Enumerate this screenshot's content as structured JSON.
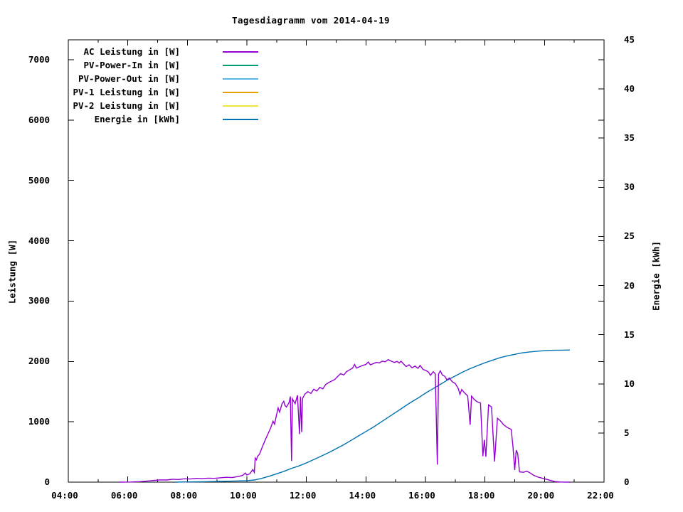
{
  "title": "Tagesdiagramm vom 2014-04-19",
  "axes": {
    "left_label": "Leistung [W]",
    "right_label": "Energie [kWh]",
    "x_tick_labels": [
      "04:00",
      "06:00",
      "08:00",
      "10:00",
      "12:00",
      "14:00",
      "16:00",
      "18:00",
      "20:00",
      "22:00"
    ],
    "left_tick_values": [
      0,
      1000,
      2000,
      3000,
      4000,
      5000,
      6000,
      7000
    ],
    "right_tick_values": [
      0,
      5,
      10,
      15,
      20,
      25,
      30,
      35,
      40,
      45
    ]
  },
  "legend": [
    {
      "label": "AC Leistung in [W]",
      "color": "#9400d3"
    },
    {
      "label": "PV-Power-In in [W]",
      "color": "#009e73"
    },
    {
      "label": "PV-Power-Out in [W]",
      "color": "#56b4e9"
    },
    {
      "label": "PV-1 Leistung in [W]",
      "color": "#e69f00"
    },
    {
      "label": "PV-2 Leistung in [W]",
      "color": "#f0e442"
    },
    {
      "label": "Energie in [kWh]",
      "color": "#0072b2"
    }
  ],
  "chart_data": {
    "type": "line",
    "title": "Tagesdiagramm vom 2014-04-19",
    "x_axis": {
      "unit": "hour-of-day",
      "range": [
        4,
        22
      ],
      "major_tick_step_h": 2,
      "minor_tick_step_h": 1,
      "tick_labels": [
        "04:00",
        "06:00",
        "08:00",
        "10:00",
        "12:00",
        "14:00",
        "16:00",
        "18:00",
        "20:00",
        "22:00"
      ]
    },
    "y_left_axis": {
      "label": "Leistung [W]",
      "range": [
        0,
        7330
      ],
      "tick_step": 1000
    },
    "y_right_axis": {
      "label": "Energie [kWh]",
      "range": [
        0,
        45
      ],
      "tick_step": 5
    },
    "grid": false,
    "legend_position": "top-left-inside",
    "series": [
      {
        "name": "AC Leistung in [W]",
        "color": "#9400d3",
        "axis": "left",
        "unit": "W",
        "points": [
          [
            5.7,
            0
          ],
          [
            6.1,
            2
          ],
          [
            6.4,
            8
          ],
          [
            6.7,
            20
          ],
          [
            6.9,
            30
          ],
          [
            7.1,
            38
          ],
          [
            7.3,
            35
          ],
          [
            7.5,
            48
          ],
          [
            7.7,
            44
          ],
          [
            7.9,
            55
          ],
          [
            8.1,
            52
          ],
          [
            8.3,
            62
          ],
          [
            8.5,
            58
          ],
          [
            8.7,
            66
          ],
          [
            8.9,
            62
          ],
          [
            9.1,
            72
          ],
          [
            9.3,
            80
          ],
          [
            9.5,
            76
          ],
          [
            9.7,
            92
          ],
          [
            9.85,
            110
          ],
          [
            9.95,
            150
          ],
          [
            10.0,
            118
          ],
          [
            10.1,
            140
          ],
          [
            10.2,
            210
          ],
          [
            10.25,
            160
          ],
          [
            10.28,
            400
          ],
          [
            10.32,
            370
          ],
          [
            10.36,
            430
          ],
          [
            10.42,
            460
          ],
          [
            10.5,
            560
          ],
          [
            10.6,
            680
          ],
          [
            10.7,
            790
          ],
          [
            10.8,
            900
          ],
          [
            10.88,
            1010
          ],
          [
            10.93,
            960
          ],
          [
            11.0,
            1120
          ],
          [
            11.05,
            1230
          ],
          [
            11.1,
            1160
          ],
          [
            11.18,
            1300
          ],
          [
            11.24,
            1340
          ],
          [
            11.28,
            1270
          ],
          [
            11.33,
            1245
          ],
          [
            11.42,
            1320
          ],
          [
            11.46,
            1420
          ],
          [
            11.5,
            350
          ],
          [
            11.53,
            1380
          ],
          [
            11.62,
            1300
          ],
          [
            11.7,
            1440
          ],
          [
            11.77,
            795
          ],
          [
            11.8,
            1420
          ],
          [
            11.84,
            830
          ],
          [
            11.87,
            1385
          ],
          [
            11.95,
            1460
          ],
          [
            12.05,
            1500
          ],
          [
            12.15,
            1470
          ],
          [
            12.25,
            1540
          ],
          [
            12.35,
            1510
          ],
          [
            12.45,
            1570
          ],
          [
            12.55,
            1545
          ],
          [
            12.65,
            1620
          ],
          [
            12.75,
            1650
          ],
          [
            12.85,
            1675
          ],
          [
            12.95,
            1700
          ],
          [
            13.05,
            1750
          ],
          [
            13.15,
            1800
          ],
          [
            13.25,
            1775
          ],
          [
            13.35,
            1830
          ],
          [
            13.45,
            1860
          ],
          [
            13.55,
            1890
          ],
          [
            13.62,
            1950
          ],
          [
            13.68,
            1890
          ],
          [
            13.8,
            1915
          ],
          [
            13.9,
            1935
          ],
          [
            14.0,
            1950
          ],
          [
            14.08,
            1990
          ],
          [
            14.15,
            1945
          ],
          [
            14.25,
            1965
          ],
          [
            14.35,
            1985
          ],
          [
            14.45,
            1975
          ],
          [
            14.55,
            2005
          ],
          [
            14.65,
            1995
          ],
          [
            14.75,
            2030
          ],
          [
            14.85,
            2005
          ],
          [
            14.95,
            1985
          ],
          [
            15.05,
            2000
          ],
          [
            15.12,
            1975
          ],
          [
            15.18,
            2005
          ],
          [
            15.28,
            1950
          ],
          [
            15.35,
            1915
          ],
          [
            15.45,
            1945
          ],
          [
            15.55,
            1895
          ],
          [
            15.65,
            1925
          ],
          [
            15.75,
            1885
          ],
          [
            15.82,
            1935
          ],
          [
            15.92,
            1865
          ],
          [
            16.0,
            1855
          ],
          [
            16.1,
            1825
          ],
          [
            16.17,
            1770
          ],
          [
            16.26,
            1830
          ],
          [
            16.33,
            1795
          ],
          [
            16.4,
            290
          ],
          [
            16.44,
            1790
          ],
          [
            16.5,
            1845
          ],
          [
            16.57,
            1775
          ],
          [
            16.65,
            1755
          ],
          [
            16.72,
            1695
          ],
          [
            16.8,
            1725
          ],
          [
            16.9,
            1665
          ],
          [
            17.0,
            1635
          ],
          [
            17.1,
            1555
          ],
          [
            17.16,
            1455
          ],
          [
            17.22,
            1535
          ],
          [
            17.32,
            1475
          ],
          [
            17.42,
            1430
          ],
          [
            17.5,
            950
          ],
          [
            17.55,
            1425
          ],
          [
            17.63,
            1375
          ],
          [
            17.72,
            1335
          ],
          [
            17.85,
            1310
          ],
          [
            17.93,
            430
          ],
          [
            17.98,
            700
          ],
          [
            18.03,
            420
          ],
          [
            18.12,
            1280
          ],
          [
            18.22,
            1245
          ],
          [
            18.32,
            340
          ],
          [
            18.42,
            1060
          ],
          [
            18.52,
            1015
          ],
          [
            18.62,
            955
          ],
          [
            18.75,
            905
          ],
          [
            18.88,
            875
          ],
          [
            18.94,
            590
          ],
          [
            19.0,
            200
          ],
          [
            19.05,
            530
          ],
          [
            19.1,
            470
          ],
          [
            19.16,
            170
          ],
          [
            19.3,
            163
          ],
          [
            19.4,
            183
          ],
          [
            19.5,
            158
          ],
          [
            19.62,
            118
          ],
          [
            19.75,
            88
          ],
          [
            19.9,
            68
          ],
          [
            20.05,
            50
          ],
          [
            20.2,
            28
          ],
          [
            20.35,
            10
          ],
          [
            20.5,
            3
          ],
          [
            20.65,
            1
          ],
          [
            20.85,
            0
          ]
        ]
      },
      {
        "name": "PV-Power-In in [W]",
        "color": "#009e73",
        "axis": "left",
        "unit": "W",
        "points": []
      },
      {
        "name": "PV-Power-Out in [W]",
        "color": "#56b4e9",
        "axis": "left",
        "unit": "W",
        "points": []
      },
      {
        "name": "PV-1 Leistung in [W]",
        "color": "#e69f00",
        "axis": "left",
        "unit": "W",
        "points": []
      },
      {
        "name": "PV-2 Leistung in [W]",
        "color": "#f0e442",
        "axis": "left",
        "unit": "W",
        "points": []
      },
      {
        "name": "Energie in [kWh]",
        "color": "#0072b2",
        "axis": "right",
        "unit": "kWh",
        "points": [
          [
            7.6,
            0
          ],
          [
            8.0,
            0.02
          ],
          [
            8.5,
            0.04
          ],
          [
            9.0,
            0.07
          ],
          [
            9.5,
            0.1
          ],
          [
            10.0,
            0.15
          ],
          [
            10.25,
            0.22
          ],
          [
            10.5,
            0.38
          ],
          [
            10.75,
            0.6
          ],
          [
            11.0,
            0.85
          ],
          [
            11.25,
            1.1
          ],
          [
            11.5,
            1.4
          ],
          [
            11.75,
            1.65
          ],
          [
            12.0,
            1.95
          ],
          [
            12.25,
            2.3
          ],
          [
            12.5,
            2.65
          ],
          [
            12.75,
            3.0
          ],
          [
            13.0,
            3.4
          ],
          [
            13.25,
            3.8
          ],
          [
            13.5,
            4.25
          ],
          [
            13.75,
            4.7
          ],
          [
            14.0,
            5.15
          ],
          [
            14.25,
            5.6
          ],
          [
            14.5,
            6.1
          ],
          [
            14.75,
            6.6
          ],
          [
            15.0,
            7.1
          ],
          [
            15.25,
            7.6
          ],
          [
            15.5,
            8.1
          ],
          [
            15.75,
            8.55
          ],
          [
            16.0,
            9.05
          ],
          [
            16.25,
            9.5
          ],
          [
            16.5,
            9.95
          ],
          [
            16.75,
            10.4
          ],
          [
            17.0,
            10.8
          ],
          [
            17.25,
            11.2
          ],
          [
            17.5,
            11.55
          ],
          [
            17.75,
            11.85
          ],
          [
            18.0,
            12.15
          ],
          [
            18.25,
            12.4
          ],
          [
            18.5,
            12.65
          ],
          [
            18.75,
            12.85
          ],
          [
            19.0,
            13.0
          ],
          [
            19.25,
            13.15
          ],
          [
            19.5,
            13.25
          ],
          [
            19.75,
            13.32
          ],
          [
            20.0,
            13.38
          ],
          [
            20.3,
            13.41
          ],
          [
            20.6,
            13.43
          ],
          [
            20.85,
            13.44
          ]
        ]
      }
    ],
    "annotations": {
      "ac_peak_w": 2030,
      "ac_peak_time": "14:45",
      "energy_final_kwh": 13.44
    }
  }
}
